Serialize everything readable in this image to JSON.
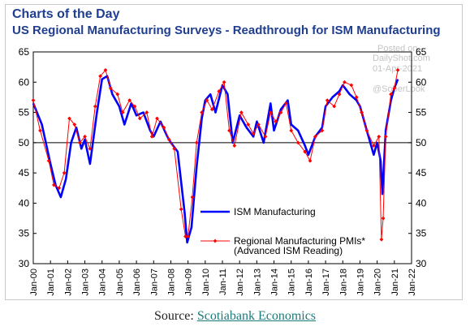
{
  "header": {
    "title": "Charts of the Day",
    "subtitle": "US Regional Manufacturing Surveys - Readthrough for ISM Manufacturing"
  },
  "watermarks": {
    "posted_on": "Posted on",
    "site": "DailyShot.com",
    "date": "01-Apr-2021",
    "handle": "@SoberLook"
  },
  "footer": {
    "source_prefix": "Source: ",
    "source_link": "Scotiabank Economics"
  },
  "colors": {
    "ism": "#0000ff",
    "regional": "#ff0000",
    "title": "#1f3e8f",
    "link": "#1a7a7a"
  },
  "chart_data": {
    "type": "line",
    "title": "US Regional Manufacturing Surveys - Readthrough for ISM Manufacturing",
    "xlabel": "",
    "ylabel": "",
    "ylim": [
      30,
      65
    ],
    "yticks": [
      30,
      35,
      40,
      45,
      50,
      55,
      60,
      65
    ],
    "xlim": [
      2000.0,
      2022.0
    ],
    "xtick_labels": [
      "Jan-00",
      "Jan-01",
      "Jan-02",
      "Jan-03",
      "Jan-04",
      "Jan-05",
      "Jan-06",
      "Jan-07",
      "Jan-08",
      "Jan-09",
      "Jan-10",
      "Jan-11",
      "Jan-12",
      "Jan-13",
      "Jan-14",
      "Jan-15",
      "Jan-16",
      "Jan-17",
      "Jan-18",
      "Jan-19",
      "Jan-20",
      "Jan-21",
      "Jan-22"
    ],
    "reference_line": 50,
    "grid": false,
    "dual_axis_labels": true,
    "legend_position": "lower-center",
    "series": [
      {
        "name": "ISM Manufacturing",
        "style": "line",
        "x": [
          2000.0,
          2000.5,
          2001.0,
          2001.3,
          2001.6,
          2001.9,
          2002.2,
          2002.5,
          2002.8,
          2003.0,
          2003.3,
          2003.7,
          2004.0,
          2004.3,
          2004.6,
          2005.0,
          2005.3,
          2005.7,
          2006.0,
          2006.4,
          2006.8,
          2007.0,
          2007.4,
          2007.8,
          2008.0,
          2008.4,
          2008.8,
          2008.95,
          2009.2,
          2009.5,
          2009.8,
          2010.0,
          2010.3,
          2010.6,
          2011.0,
          2011.3,
          2011.6,
          2012.0,
          2012.4,
          2012.8,
          2013.0,
          2013.4,
          2013.8,
          2014.0,
          2014.4,
          2014.8,
          2015.0,
          2015.4,
          2015.8,
          2016.0,
          2016.4,
          2016.8,
          2017.0,
          2017.4,
          2017.8,
          2018.0,
          2018.4,
          2018.8,
          2019.0,
          2019.4,
          2019.8,
          2020.0,
          2020.2,
          2020.3,
          2020.5,
          2020.8,
          2021.0,
          2021.2
        ],
        "y": [
          56.5,
          53,
          46.5,
          43,
          41,
          44,
          50,
          52.5,
          49,
          50.5,
          46.5,
          55,
          60.5,
          61,
          58,
          56,
          53,
          56.5,
          54.5,
          55,
          52,
          51,
          53.5,
          51,
          50,
          48.5,
          38.5,
          33.5,
          36,
          46,
          54,
          57,
          58,
          55,
          59.5,
          58,
          50,
          54.5,
          52.5,
          51,
          53.5,
          50,
          56.5,
          52,
          55.5,
          57,
          53,
          52,
          49.5,
          48,
          51,
          52.5,
          56,
          57.5,
          58.5,
          59.5,
          58,
          57,
          56,
          52,
          48,
          50,
          47,
          41.5,
          52,
          57,
          59,
          60.5
        ]
      },
      {
        "name": "Regional Manufacturing PMIs*",
        "name_line2": "(Advanced ISM Reading)",
        "style": "line-markers",
        "x": [
          2000.0,
          2000.4,
          2000.9,
          2001.2,
          2001.5,
          2001.8,
          2002.1,
          2002.4,
          2002.7,
          2003.0,
          2003.3,
          2003.6,
          2003.9,
          2004.2,
          2004.5,
          2004.9,
          2005.2,
          2005.6,
          2005.9,
          2006.2,
          2006.6,
          2006.9,
          2007.2,
          2007.6,
          2007.9,
          2008.2,
          2008.6,
          2008.85,
          2009.0,
          2009.25,
          2009.5,
          2009.8,
          2010.1,
          2010.4,
          2010.8,
          2011.1,
          2011.4,
          2011.7,
          2012.1,
          2012.5,
          2012.8,
          2013.1,
          2013.5,
          2013.8,
          2014.1,
          2014.4,
          2014.7,
          2015.0,
          2015.4,
          2015.8,
          2016.1,
          2016.4,
          2016.8,
          2017.1,
          2017.5,
          2017.8,
          2018.1,
          2018.5,
          2018.8,
          2019.1,
          2019.4,
          2019.8,
          2020.1,
          2020.25,
          2020.35,
          2020.5,
          2020.8,
          2021.0,
          2021.2
        ],
        "y": [
          57,
          52,
          47,
          43,
          42.5,
          45,
          54,
          53,
          50,
          51,
          49,
          56,
          61,
          62,
          59,
          58,
          55,
          57,
          56,
          54,
          55,
          51,
          54,
          52.5,
          50.5,
          49,
          39,
          34.5,
          34.5,
          41,
          50,
          55,
          57,
          55.5,
          58.5,
          60,
          52,
          49.5,
          55,
          53,
          51.5,
          53,
          51,
          55,
          53.5,
          55,
          56.5,
          52,
          50,
          48.5,
          47,
          51,
          52,
          57,
          56,
          58,
          60,
          59.5,
          57.5,
          55,
          52,
          49.5,
          51,
          34,
          37.5,
          51,
          58,
          59,
          62
        ]
      }
    ]
  }
}
